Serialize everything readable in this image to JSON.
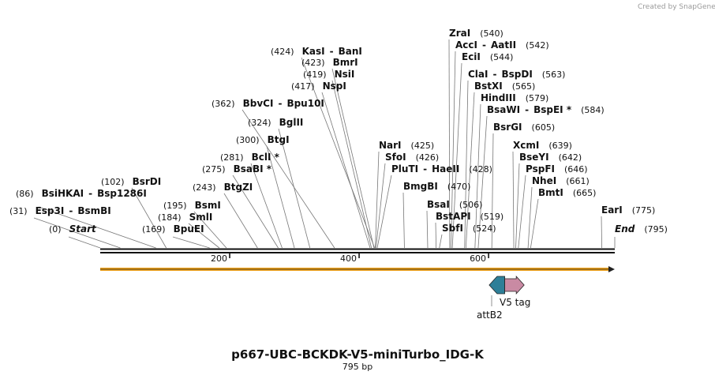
{
  "credit": "Created by SnapGene",
  "title": "p667-UBC-BCKDK-V5-miniTurbo_IDG-K",
  "length_label": "795 bp",
  "total_bp": 795,
  "colors": {
    "orf": "#f0a21a",
    "attb2": "#2e7f98",
    "v5": "#c98aa3",
    "backbone": "#111111"
  },
  "scale_ticks": [
    "200",
    "400",
    "600"
  ],
  "scale_tick_values": [
    200,
    400,
    600
  ],
  "features": [
    {
      "name": "V5 tag",
      "kind": "right-arrow",
      "start": 625,
      "end": 655
    },
    {
      "name": "attB2",
      "kind": "left-arrow",
      "start": 601,
      "end": 625
    }
  ],
  "orf": {
    "start": 1,
    "end": 795,
    "direction": "forward"
  },
  "sites": [
    {
      "pos_label": "(0)",
      "name": "Start",
      "italic": true,
      "bp": 0
    },
    {
      "pos_label": "(31)",
      "name": "Esp3I",
      "name2": "BsmBI",
      "bp": 31
    },
    {
      "pos_label": "(86)",
      "name": "BsiHKAI",
      "name2": "Bsp1286I",
      "bp": 86
    },
    {
      "pos_label": "(102)",
      "name": "BsrDI",
      "bp": 102
    },
    {
      "pos_label": "(169)",
      "name": "BpuEI",
      "bp": 169
    },
    {
      "pos_label": "(184)",
      "name": "SmlI",
      "bp": 184
    },
    {
      "pos_label": "(195)",
      "name": "BsmI",
      "bp": 195
    },
    {
      "pos_label": "(243)",
      "name": "BtgZI",
      "bp": 243
    },
    {
      "pos_label": "(275)",
      "name": "BsaBI",
      "star": true,
      "bp": 275
    },
    {
      "pos_label": "(281)",
      "name": "BclI",
      "star": true,
      "bp": 281
    },
    {
      "pos_label": "(300)",
      "name": "BtgI",
      "bp": 300
    },
    {
      "pos_label": "(324)",
      "name": "BglII",
      "bp": 324
    },
    {
      "pos_label": "(362)",
      "name": "BbvCI",
      "name2": "Bpu10I",
      "bp": 362
    },
    {
      "pos_label": "(417)",
      "name": "NspI",
      "bp": 417
    },
    {
      "pos_label": "(419)",
      "name": "NsiI",
      "bp": 419
    },
    {
      "pos_label": "(423)",
      "name": "BmrI",
      "bp": 423
    },
    {
      "pos_label": "(424)",
      "name": "KasI",
      "name2": "BanI",
      "bp": 424
    },
    {
      "pos_label": "(425)",
      "name": "NarI",
      "bp": 425
    },
    {
      "pos_label": "(426)",
      "name": "SfoI",
      "bp": 426
    },
    {
      "pos_label": "(428)",
      "name": "PluTI",
      "name2": "HaeII",
      "bp": 428
    },
    {
      "pos_label": "(470)",
      "name": "BmgBI",
      "bp": 470
    },
    {
      "pos_label": "(506)",
      "name": "BsaI",
      "bp": 506
    },
    {
      "pos_label": "(519)",
      "name": "BstAPI",
      "bp": 519
    },
    {
      "pos_label": "(524)",
      "name": "SbfI",
      "bp": 524
    },
    {
      "pos_label": "(540)",
      "name": "ZraI",
      "bp": 540
    },
    {
      "pos_label": "(542)",
      "name": "AccI",
      "name2": "AatII",
      "bp": 542
    },
    {
      "pos_label": "(544)",
      "name": "EciI",
      "bp": 544
    },
    {
      "pos_label": "(563)",
      "name": "ClaI",
      "name2": "BspDI",
      "bp": 563
    },
    {
      "pos_label": "(565)",
      "name": "BstXI",
      "bp": 565
    },
    {
      "pos_label": "(579)",
      "name": "HindIII",
      "bp": 579
    },
    {
      "pos_label": "(584)",
      "name": "BsaWI",
      "name2": "BspEI",
      "star": true,
      "bp": 584
    },
    {
      "pos_label": "(605)",
      "name": "BsrGI",
      "bp": 605
    },
    {
      "pos_label": "(639)",
      "name": "XcmI",
      "bp": 639
    },
    {
      "pos_label": "(642)",
      "name": "BseYI",
      "bp": 642
    },
    {
      "pos_label": "(646)",
      "name": "PspFI",
      "bp": 646
    },
    {
      "pos_label": "(661)",
      "name": "NheI",
      "bp": 661
    },
    {
      "pos_label": "(665)",
      "name": "BmtI",
      "bp": 665
    },
    {
      "pos_label": "(775)",
      "name": "EarI",
      "bp": 775
    },
    {
      "pos_label": "(795)",
      "name": "End",
      "italic": true,
      "bp": 795
    }
  ]
}
